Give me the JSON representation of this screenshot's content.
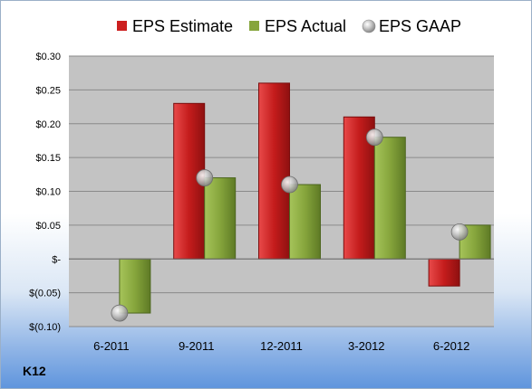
{
  "company": "K12",
  "colors": {
    "estimate": "#cc1f1f",
    "actual": "#86a53c",
    "gaap": "#c8c8c8",
    "plot_bg": "#c3c3c3"
  },
  "chart_data": {
    "type": "bar",
    "categories": [
      "6-2011",
      "9-2011",
      "12-2011",
      "3-2012",
      "6-2012"
    ],
    "series": [
      {
        "name": "EPS Estimate",
        "kind": "bar",
        "values": [
          null,
          0.23,
          0.26,
          0.21,
          -0.04
        ]
      },
      {
        "name": "EPS Actual",
        "kind": "bar",
        "values": [
          -0.08,
          0.12,
          0.11,
          0.18,
          0.05
        ]
      },
      {
        "name": "EPS GAAP",
        "kind": "marker",
        "values": [
          -0.08,
          0.12,
          0.11,
          0.18,
          0.04
        ]
      }
    ],
    "ylim": [
      -0.1,
      0.3
    ],
    "yticks": [
      0.3,
      0.25,
      0.2,
      0.15,
      0.1,
      0.05,
      0.0,
      -0.05,
      -0.1
    ],
    "ytick_labels": [
      "$0.30",
      "$0.25",
      "$0.20",
      "$0.15",
      "$0.10",
      "$0.05",
      "$-",
      "$(0.05)",
      "$(0.10)"
    ],
    "grid": true,
    "legend": "top"
  }
}
